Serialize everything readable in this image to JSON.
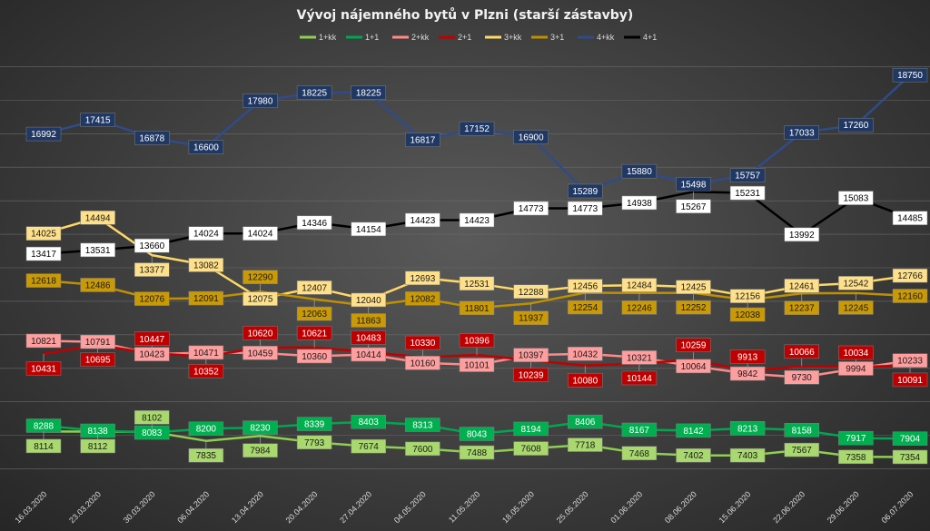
{
  "chart_data": {
    "type": "line",
    "title": "Vývoj nájemného bytů v Plzni (starší zástavby)",
    "xlabel": "",
    "ylabel": "",
    "ylim": [
      6500,
      19500
    ],
    "grid": "horizontal",
    "legend_position": "top",
    "x": [
      "16.03.2020",
      "23.03.2020",
      "30.03.2020",
      "06.04.2020",
      "13.04.2020",
      "20.04.2020",
      "27.04.2020",
      "04.05.2020",
      "11.05.2020",
      "18.05.2020",
      "25.05.2020",
      "01.06.2020",
      "08.06.2020",
      "15.06.2020",
      "22.06.2020",
      "29.06.2020",
      "06.07.2020"
    ],
    "series": [
      {
        "name": "1+kk",
        "color": "#8fcf4f",
        "label_bg": "#a9d86e",
        "label_fg": "#1a1a1a",
        "values": [
          8114,
          8112,
          8102,
          7835,
          7984,
          7793,
          7674,
          7600,
          7488,
          7608,
          7718,
          7468,
          7402,
          7403,
          7567,
          7358,
          7354
        ]
      },
      {
        "name": "1+1",
        "color": "#00a651",
        "label_bg": "#00b050",
        "label_fg": "#ffffff",
        "values": [
          8288,
          8138,
          8083,
          8200,
          8230,
          8339,
          8403,
          8313,
          8043,
          8194,
          8406,
          8167,
          8142,
          8213,
          8158,
          7917,
          7904
        ]
      },
      {
        "name": "2+kk",
        "color": "#ff8a8a",
        "label_bg": "#ff9e9e",
        "label_fg": "#1a1a1a",
        "values": [
          10821,
          10791,
          10423,
          10471,
          10459,
          10360,
          10414,
          10160,
          10101,
          10397,
          10432,
          10321,
          10064,
          9842,
          9730,
          9994,
          10233
        ]
      },
      {
        "name": "2+1",
        "color": "#c00000",
        "label_bg": "#c00000",
        "label_fg": "#ffffff",
        "values": [
          10431,
          10695,
          10447,
          10352,
          10620,
          10621,
          10483,
          10330,
          10396,
          10239,
          10080,
          10144,
          10259,
          9913,
          10066,
          10034,
          10091
        ]
      },
      {
        "name": "3+kk",
        "color": "#ffd966",
        "label_bg": "#ffe08a",
        "label_fg": "#1a1a1a",
        "values": [
          14025,
          14494,
          13377,
          13082,
          12075,
          12407,
          12040,
          12693,
          12531,
          12288,
          12456,
          12484,
          12425,
          12156,
          12461,
          12542,
          12766
        ]
      },
      {
        "name": "3+1",
        "color": "#bf9000",
        "label_bg": "#c99a06",
        "label_fg": "#1a1a1a",
        "values": [
          12618,
          12486,
          12076,
          12091,
          12290,
          12063,
          11863,
          12082,
          11801,
          11937,
          12254,
          12246,
          12252,
          12038,
          12237,
          12245,
          12160
        ]
      },
      {
        "name": "4+kk",
        "color": "#2f4b8a",
        "label_bg": "#203864",
        "label_fg": "#ffffff",
        "values": [
          16992,
          17415,
          16878,
          16600,
          17980,
          18225,
          18225,
          16817,
          17152,
          16900,
          15289,
          15880,
          15498,
          15757,
          17033,
          17260,
          18750
        ]
      },
      {
        "name": "4+1",
        "color": "#000000",
        "label_bg": "#ffffff",
        "label_fg": "#000000",
        "values": [
          13417,
          13531,
          13660,
          14024,
          14024,
          14346,
          14154,
          14423,
          14423,
          14773,
          14773,
          14938,
          15267,
          15231,
          13992,
          15083,
          14485
        ]
      }
    ]
  }
}
